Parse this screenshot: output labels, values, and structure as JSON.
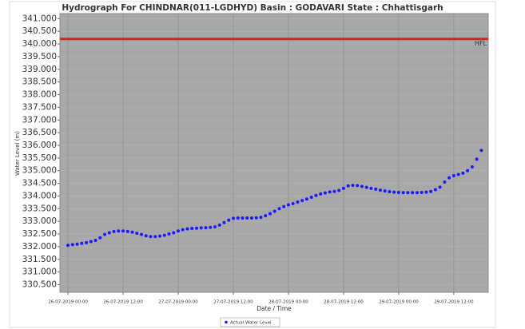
{
  "chart_data": {
    "type": "line",
    "title": "Hydrograph For CHINDNAR(011-LGDHYD) Basin : GODAVARI State : Chhattisgarh",
    "x_label": "Date / Time",
    "y_label": "Water Level (m)",
    "x": [
      "2019-07-26T00:00",
      "2019-07-26T01:00",
      "2019-07-26T02:00",
      "2019-07-26T03:00",
      "2019-07-26T04:00",
      "2019-07-26T05:00",
      "2019-07-26T06:00",
      "2019-07-26T07:00",
      "2019-07-26T08:00",
      "2019-07-26T09:00",
      "2019-07-26T10:00",
      "2019-07-26T11:00",
      "2019-07-26T12:00",
      "2019-07-26T13:00",
      "2019-07-26T14:00",
      "2019-07-26T15:00",
      "2019-07-26T16:00",
      "2019-07-26T17:00",
      "2019-07-26T18:00",
      "2019-07-26T19:00",
      "2019-07-26T20:00",
      "2019-07-26T21:00",
      "2019-07-26T22:00",
      "2019-07-26T23:00",
      "2019-07-27T00:00",
      "2019-07-27T01:00",
      "2019-07-27T02:00",
      "2019-07-27T03:00",
      "2019-07-27T04:00",
      "2019-07-27T05:00",
      "2019-07-27T06:00",
      "2019-07-27T07:00",
      "2019-07-27T08:00",
      "2019-07-27T09:00",
      "2019-07-27T10:00",
      "2019-07-27T11:00",
      "2019-07-27T12:00",
      "2019-07-27T13:00",
      "2019-07-27T14:00",
      "2019-07-27T15:00",
      "2019-07-27T16:00",
      "2019-07-27T17:00",
      "2019-07-27T18:00",
      "2019-07-27T19:00",
      "2019-07-27T20:00",
      "2019-07-27T21:00",
      "2019-07-27T22:00",
      "2019-07-27T23:00",
      "2019-07-28T00:00",
      "2019-07-28T01:00",
      "2019-07-28T02:00",
      "2019-07-28T03:00",
      "2019-07-28T04:00",
      "2019-07-28T05:00",
      "2019-07-28T06:00",
      "2019-07-28T07:00",
      "2019-07-28T08:00",
      "2019-07-28T09:00",
      "2019-07-28T10:00",
      "2019-07-28T11:00",
      "2019-07-28T12:00",
      "2019-07-28T13:00",
      "2019-07-28T14:00",
      "2019-07-28T15:00",
      "2019-07-28T16:00",
      "2019-07-28T17:00",
      "2019-07-28T18:00",
      "2019-07-28T19:00",
      "2019-07-28T20:00",
      "2019-07-28T21:00",
      "2019-07-28T22:00",
      "2019-07-28T23:00",
      "2019-07-29T00:00",
      "2019-07-29T01:00",
      "2019-07-29T02:00",
      "2019-07-29T03:00",
      "2019-07-29T04:00",
      "2019-07-29T05:00",
      "2019-07-29T06:00",
      "2019-07-29T07:00",
      "2019-07-29T08:00",
      "2019-07-29T09:00",
      "2019-07-29T10:00",
      "2019-07-29T11:00",
      "2019-07-29T12:00",
      "2019-07-29T13:00",
      "2019-07-29T14:00",
      "2019-07-29T15:00",
      "2019-07-29T16:00",
      "2019-07-29T17:00",
      "2019-07-29T18:00"
    ],
    "series": [
      {
        "name": "Actual Water Level",
        "color": "#1a1aff",
        "values": [
          332.05,
          332.08,
          332.1,
          332.13,
          332.16,
          332.2,
          332.25,
          332.35,
          332.48,
          332.55,
          332.6,
          332.62,
          332.62,
          332.6,
          332.57,
          332.53,
          332.48,
          332.43,
          332.4,
          332.4,
          332.42,
          332.45,
          332.5,
          332.55,
          332.62,
          332.67,
          332.7,
          332.72,
          332.73,
          332.74,
          332.75,
          332.76,
          332.78,
          332.85,
          332.95,
          333.05,
          333.12,
          333.13,
          333.13,
          333.13,
          333.13,
          333.14,
          333.16,
          333.22,
          333.3,
          333.4,
          333.5,
          333.58,
          333.65,
          333.7,
          333.76,
          333.82,
          333.88,
          333.95,
          334.02,
          334.08,
          334.12,
          334.16,
          334.18,
          334.22,
          334.3,
          334.4,
          334.42,
          334.41,
          334.38,
          334.34,
          334.3,
          334.27,
          334.23,
          334.2,
          334.17,
          334.15,
          334.14,
          334.13,
          334.13,
          334.13,
          334.13,
          334.14,
          334.15,
          334.18,
          334.25,
          334.35,
          334.55,
          334.72,
          334.8,
          334.85,
          334.9,
          335.0,
          335.15,
          335.45,
          335.8
        ]
      }
    ],
    "hfl": {
      "value": 340.2,
      "label": "HFL",
      "color": "#e02020"
    },
    "xlim": [
      "2019-07-25T22:15",
      "2019-07-29T19:30"
    ],
    "xticks": [
      {
        "value": "2019-07-26T00:00",
        "label": "26-07-2019 00:00"
      },
      {
        "value": "2019-07-26T12:00",
        "label": "26-07-2019 12:00"
      },
      {
        "value": "2019-07-27T00:00",
        "label": "27-07-2019 00:00"
      },
      {
        "value": "2019-07-27T12:00",
        "label": "27-07-2019 12:00"
      },
      {
        "value": "2019-07-28T00:00",
        "label": "28-07-2019 00:00"
      },
      {
        "value": "2019-07-28T12:00",
        "label": "28-07-2019 12:00"
      },
      {
        "value": "2019-07-29T00:00",
        "label": "29-07-2019 00:00"
      },
      {
        "value": "2019-07-29T12:00",
        "label": "29-07-2019 12:00"
      }
    ],
    "ylim": [
      330.2,
      341.2
    ],
    "yticks": [
      {
        "value": 330.5,
        "label": "330.500"
      },
      {
        "value": 331,
        "label": "331.000"
      },
      {
        "value": 331.5,
        "label": "331.500"
      },
      {
        "value": 332,
        "label": "332.000"
      },
      {
        "value": 332.5,
        "label": "332.500"
      },
      {
        "value": 333,
        "label": "333.000"
      },
      {
        "value": 333.5,
        "label": "333.500"
      },
      {
        "value": 334,
        "label": "334.000"
      },
      {
        "value": 334.5,
        "label": "334.500"
      },
      {
        "value": 335,
        "label": "335.000"
      },
      {
        "value": 335.5,
        "label": "335.500"
      },
      {
        "value": 336,
        "label": "336.000"
      },
      {
        "value": 336.5,
        "label": "336.500"
      },
      {
        "value": 337,
        "label": "337.000"
      },
      {
        "value": 337.5,
        "label": "337.500"
      },
      {
        "value": 338,
        "label": "338.000"
      },
      {
        "value": 338.5,
        "label": "338.500"
      },
      {
        "value": 339,
        "label": "339.000"
      },
      {
        "value": 339.5,
        "label": "339.500"
      },
      {
        "value": 340,
        "label": "340.000"
      },
      {
        "value": 340.5,
        "label": "340.500"
      },
      {
        "value": 341,
        "label": "341.000"
      }
    ],
    "grid": true
  }
}
